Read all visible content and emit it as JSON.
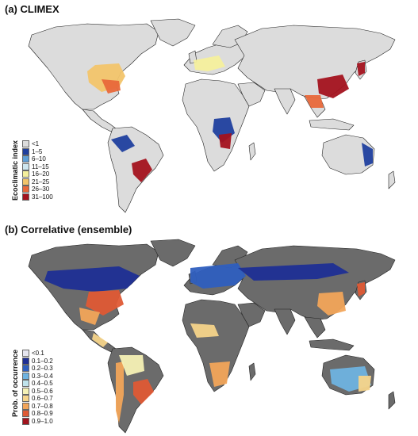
{
  "panels": [
    {
      "title": "(a) CLIMEX",
      "land_color": "#dcdcdc",
      "legend": {
        "title": "Ecoclimatic index",
        "items": [
          {
            "label": "<1",
            "color": "#dcdcdc"
          },
          {
            "label": "1–5",
            "color": "#1f3f9e"
          },
          {
            "label": "6–10",
            "color": "#5f9fd6"
          },
          {
            "label": "11–15",
            "color": "#cde6ef"
          },
          {
            "label": "16–20",
            "color": "#f4ef9c"
          },
          {
            "label": "21–25",
            "color": "#f2c46a"
          },
          {
            "label": "26–30",
            "color": "#e8683a"
          },
          {
            "label": "31–100",
            "color": "#a3121d"
          }
        ]
      }
    },
    {
      "title": "(b) Correlative (ensemble)",
      "land_color": "#6b6b6b",
      "legend": {
        "title": "Prob. of occurrence",
        "items": [
          {
            "label": "<0.1",
            "color": "#e6e6f0"
          },
          {
            "label": "0.1–0.2",
            "color": "#1f2f95"
          },
          {
            "label": "0.2–0.3",
            "color": "#2f5fbf"
          },
          {
            "label": "0.3–0.4",
            "color": "#6fb3e0"
          },
          {
            "label": "0.4–0.5",
            "color": "#bfe3ec"
          },
          {
            "label": "0.5–0.6",
            "color": "#f5f1b5"
          },
          {
            "label": "0.6–0.7",
            "color": "#f6d48a"
          },
          {
            "label": "0.7–0.8",
            "color": "#f2a55a"
          },
          {
            "label": "0.8–0.9",
            "color": "#df5a35"
          },
          {
            "label": "0.9–1.0",
            "color": "#a1131d"
          }
        ]
      }
    }
  ]
}
